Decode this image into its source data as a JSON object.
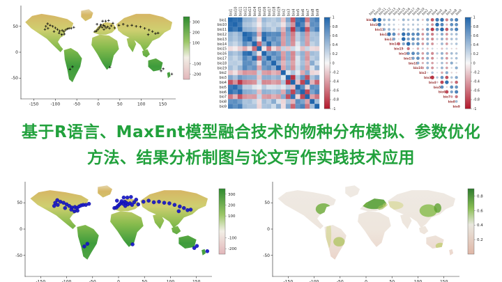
{
  "title": {
    "line1": "基于R语言、MaxEnt模型融合技术的物种分布模拟、参数优化",
    "line2": "方法、结果分析制图与论文写作实践技术应用",
    "color": "#21a13c"
  },
  "chart_data": [
    {
      "id": "elevation-map",
      "type": "heatmap",
      "note": "world environmental raster map with species occurrence crosses",
      "x_ticks": [
        -150,
        -100,
        -50,
        0,
        50,
        100,
        150
      ],
      "y_ticks": [
        50,
        0,
        -50
      ],
      "legend_ticks": [
        300,
        200,
        100,
        -100,
        -200
      ],
      "legend_range": [
        350,
        -250
      ],
      "marker": "plus",
      "marker_color": "#111111"
    },
    {
      "id": "correlation-heatmap",
      "type": "heatmap",
      "labels": [
        "bio1",
        "bio10",
        "bio11",
        "bio12",
        "bio13",
        "bio14",
        "bio15",
        "bio16",
        "bio17",
        "bio18",
        "bio19",
        "bio2",
        "bio3",
        "bio4",
        "bio5",
        "bio6",
        "bio7",
        "bio8",
        "bio9"
      ],
      "upper": [
        [
          0.94,
          0.96,
          0.45,
          0.42,
          0.32,
          -0.12,
          0.43,
          0.33,
          0.28,
          0.38,
          -0.22,
          0.55,
          -0.72,
          0.86,
          0.93,
          -0.56,
          0.68,
          0.82
        ],
        [
          0.85,
          0.35,
          0.33,
          0.22,
          -0.05,
          0.34,
          0.23,
          0.3,
          0.25,
          -0.1,
          0.38,
          -0.45,
          0.95,
          0.78,
          -0.3,
          0.72,
          0.7
        ],
        [
          0.48,
          0.44,
          0.36,
          -0.18,
          0.45,
          0.37,
          0.25,
          0.44,
          -0.3,
          0.65,
          -0.85,
          0.72,
          0.98,
          -0.72,
          0.6,
          0.82
        ],
        [
          0.9,
          0.74,
          -0.35,
          0.92,
          0.78,
          0.72,
          0.76,
          -0.45,
          0.55,
          -0.55,
          0.28,
          0.52,
          -0.45,
          0.35,
          0.4
        ],
        [
          0.55,
          -0.1,
          0.98,
          0.6,
          0.72,
          0.6,
          -0.4,
          0.5,
          -0.5,
          0.28,
          0.48,
          -0.4,
          0.38,
          0.35
        ],
        [
          -0.62,
          0.55,
          0.97,
          0.55,
          0.68,
          -0.42,
          0.48,
          -0.45,
          0.12,
          0.42,
          -0.42,
          0.25,
          0.35
        ],
        [
          -0.08,
          -0.58,
          -0.12,
          -0.35,
          0.25,
          -0.22,
          0.2,
          0.05,
          -0.25,
          0.22,
          -0.12,
          -0.15
        ],
        [
          0.62,
          0.75,
          0.62,
          -0.4,
          0.5,
          -0.5,
          0.3,
          0.48,
          -0.4,
          0.4,
          0.35
        ],
        [
          0.58,
          0.72,
          -0.44,
          0.5,
          -0.48,
          0.14,
          0.45,
          -0.44,
          0.28,
          0.38
        ],
        [
          0.5,
          -0.3,
          0.4,
          -0.38,
          0.15,
          0.38,
          -0.32,
          0.52,
          0.2
        ],
        [
          -0.38,
          0.48,
          -0.45,
          0.2,
          0.45,
          -0.4,
          0.15,
          0.5
        ],
        [
          0.12,
          0.35,
          0.1,
          -0.35,
          0.52,
          -0.15,
          -0.12
        ],
        [
          -0.88,
          0.32,
          0.68,
          -0.75,
          0.35,
          0.55
        ],
        [
          -0.25,
          -0.8,
          0.92,
          -0.3,
          -0.65
        ],
        [
          0.72,
          -0.15,
          0.72,
          0.68
        ],
        [
          -0.78,
          0.58,
          0.8
        ],
        [
          -0.38,
          -0.58
        ],
        [
          0.4
        ]
      ],
      "colorbar_ticks": [
        1,
        0.8,
        0.6,
        0.4,
        0.2,
        0,
        -0.2,
        -0.4,
        -0.6,
        -0.8,
        -1
      ],
      "positive_color": "#2166ac",
      "negative_color": "#b2182b"
    },
    {
      "id": "correlation-corrplot",
      "type": "scatter",
      "note": "upper-triangle correlogram, circle size and color encode r",
      "uses_matrix_of": "correlation-heatmap",
      "label_color": "#993333",
      "colorbar_ticks": [
        1,
        0.8,
        0.6,
        0.4,
        0.2,
        0,
        -0.2,
        -0.4,
        -0.6,
        -0.8,
        -1
      ]
    },
    {
      "id": "occurrence-map",
      "type": "scatter",
      "note": "world raster map with blue species occurrence dots",
      "x_ticks": [
        -150,
        -100,
        -50,
        0,
        50,
        100,
        150
      ],
      "y_ticks": [
        50,
        0,
        -50
      ],
      "legend_ticks": [
        300,
        200,
        100,
        -100,
        -200
      ],
      "legend_range": [
        350,
        -250
      ],
      "marker": "dot",
      "marker_color": "#1515c8",
      "points": [
        [
          -122,
          50
        ],
        [
          -118,
          55
        ],
        [
          -112,
          52
        ],
        [
          -106,
          50
        ],
        [
          -100,
          47
        ],
        [
          -95,
          44
        ],
        [
          -90,
          41
        ],
        [
          -84,
          42
        ],
        [
          -80,
          40
        ],
        [
          -76,
          43
        ],
        [
          -72,
          45
        ],
        [
          -68,
          46
        ],
        [
          -85,
          34
        ],
        [
          -79,
          35
        ],
        [
          -91,
          37
        ],
        [
          -103,
          40
        ],
        [
          -117,
          46
        ],
        [
          -124,
          44
        ],
        [
          -63,
          46
        ],
        [
          -57,
          48
        ],
        [
          -8,
          40
        ],
        [
          -4,
          41
        ],
        [
          -1,
          44
        ],
        [
          2,
          47
        ],
        [
          5,
          50
        ],
        [
          9,
          48
        ],
        [
          12,
          52
        ],
        [
          15,
          50
        ],
        [
          18,
          47
        ],
        [
          22,
          49
        ],
        [
          26,
          46
        ],
        [
          30,
          51
        ],
        [
          34,
          56
        ],
        [
          13,
          44
        ],
        [
          6,
          53
        ],
        [
          -3,
          54
        ],
        [
          24,
          61
        ],
        [
          17,
          60
        ],
        [
          10,
          60
        ],
        [
          38,
          47
        ],
        [
          48,
          52
        ],
        [
          58,
          54
        ],
        [
          68,
          51
        ],
        [
          78,
          52
        ],
        [
          88,
          50
        ],
        [
          98,
          49
        ],
        [
          108,
          46
        ],
        [
          118,
          43
        ],
        [
          126,
          40
        ],
        [
          133,
          36
        ],
        [
          139,
          37
        ],
        [
          116,
          34
        ],
        [
          -66,
          -33
        ],
        [
          -60,
          -28
        ],
        [
          27,
          -29
        ],
        [
          146,
          -36
        ],
        [
          151,
          -32
        ],
        [
          171,
          -42
        ]
      ]
    },
    {
      "id": "suitability-map",
      "type": "heatmap",
      "note": "MaxEnt habitat suitability prediction map",
      "x_ticks": [
        -150,
        -100,
        -50,
        0,
        50,
        100,
        150
      ],
      "y_ticks": [
        50,
        0,
        -50
      ],
      "legend_ticks": [
        0.8,
        0.6,
        0.4,
        0.2
      ],
      "legend_range": [
        0.9,
        0
      ]
    }
  ]
}
